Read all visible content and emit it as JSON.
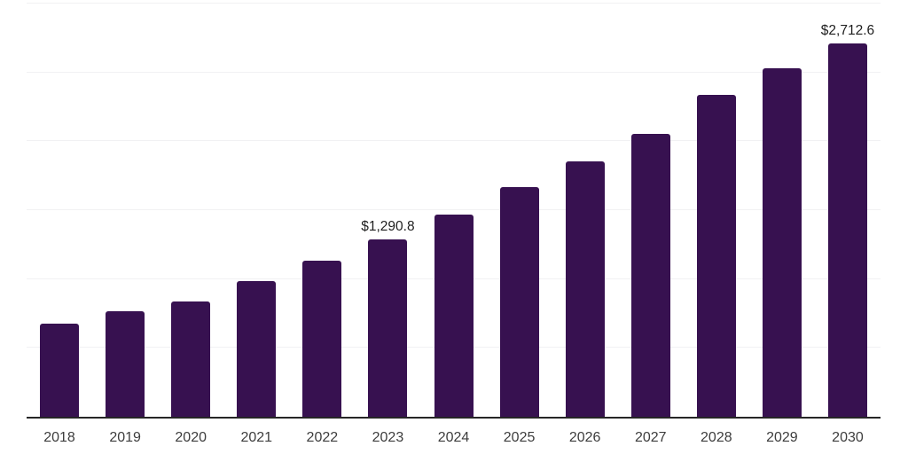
{
  "chart_data": {
    "type": "bar",
    "title": "",
    "xlabel": "",
    "ylabel": "",
    "categories": [
      "2018",
      "2019",
      "2020",
      "2021",
      "2022",
      "2023",
      "2024",
      "2025",
      "2026",
      "2027",
      "2028",
      "2029",
      "2030"
    ],
    "values": [
      675,
      765,
      838,
      985,
      1132,
      1290.8,
      1467,
      1665,
      1852,
      2056,
      2340,
      2530,
      2712.6
    ],
    "point_labels": [
      null,
      null,
      null,
      null,
      null,
      "$1,290.8",
      null,
      null,
      null,
      null,
      null,
      null,
      "$2,712.6"
    ],
    "ylim": [
      0,
      3000
    ],
    "gridline_step": 500,
    "grid": "horizontal",
    "legend_position": "none",
    "colors": {
      "bar": "#371150",
      "axis_line": "#262626",
      "gridline": "#f1f1f3",
      "tick_label": "#3d3d3d",
      "data_label": "#1f1f1f",
      "background": "#ffffff"
    }
  }
}
